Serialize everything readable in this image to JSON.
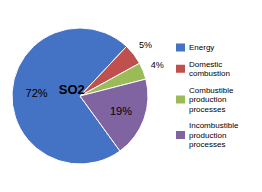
{
  "chart_data": {
    "type": "pie",
    "categories": [
      "Energy",
      "Domestic\ncombustion",
      "Combustible\nproduction\nprocesses",
      "Incombustible\nproduction\nprocesses"
    ],
    "values": [
      72,
      5,
      4,
      19
    ],
    "value_labels": [
      "72%",
      "5%",
      "4%",
      "19%"
    ],
    "data_labels": true,
    "colors": [
      "#4472C4",
      "#C0504D",
      "#9BBB59",
      "#8064A2"
    ],
    "annotations": [
      "SO2"
    ],
    "legend": "right"
  }
}
